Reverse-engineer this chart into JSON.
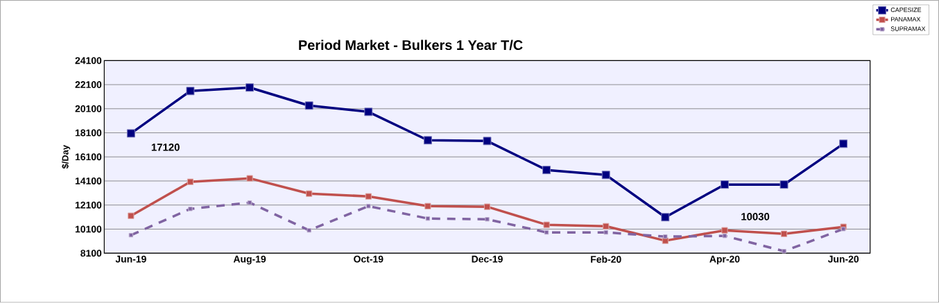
{
  "chart_data": {
    "type": "line",
    "title": "Period Market - Bulkers  1 Year T/C",
    "ylabel": "$/Day",
    "categories": [
      "Jun-19",
      null,
      "Aug-19",
      null,
      "Oct-19",
      null,
      "Dec-19",
      null,
      "Feb-20",
      null,
      "Apr-20",
      null,
      "Jun-20"
    ],
    "series": [
      {
        "name": "CAPESIZE",
        "color": "#000080",
        "values": [
          18050,
          21570,
          21860,
          20360,
          19840,
          17480,
          17420,
          15010,
          14600,
          11090,
          13800,
          13800,
          17190
        ]
      },
      {
        "name": "PANAMAX",
        "color": "#c0504d",
        "values": [
          11210,
          14030,
          14320,
          13050,
          12820,
          12010,
          11960,
          10460,
          10340,
          9140,
          10000,
          9710,
          10290
        ]
      },
      {
        "name": "SUPRAMAX",
        "color": "#8064a2",
        "line_style": "dashed",
        "values": [
          9600,
          11780,
          12300,
          10000,
          12010,
          10980,
          10920,
          9830,
          9830,
          9480,
          9540,
          8270,
          10110
        ]
      }
    ],
    "ylim": [
      8100,
      24100
    ],
    "yticks": [
      8100,
      10100,
      12100,
      14100,
      16100,
      18100,
      20100,
      22100,
      24100
    ],
    "grid": "y",
    "legend": "top right",
    "marker": "square",
    "line_style": "solid",
    "annotations": [
      "17120",
      "10030"
    ]
  }
}
